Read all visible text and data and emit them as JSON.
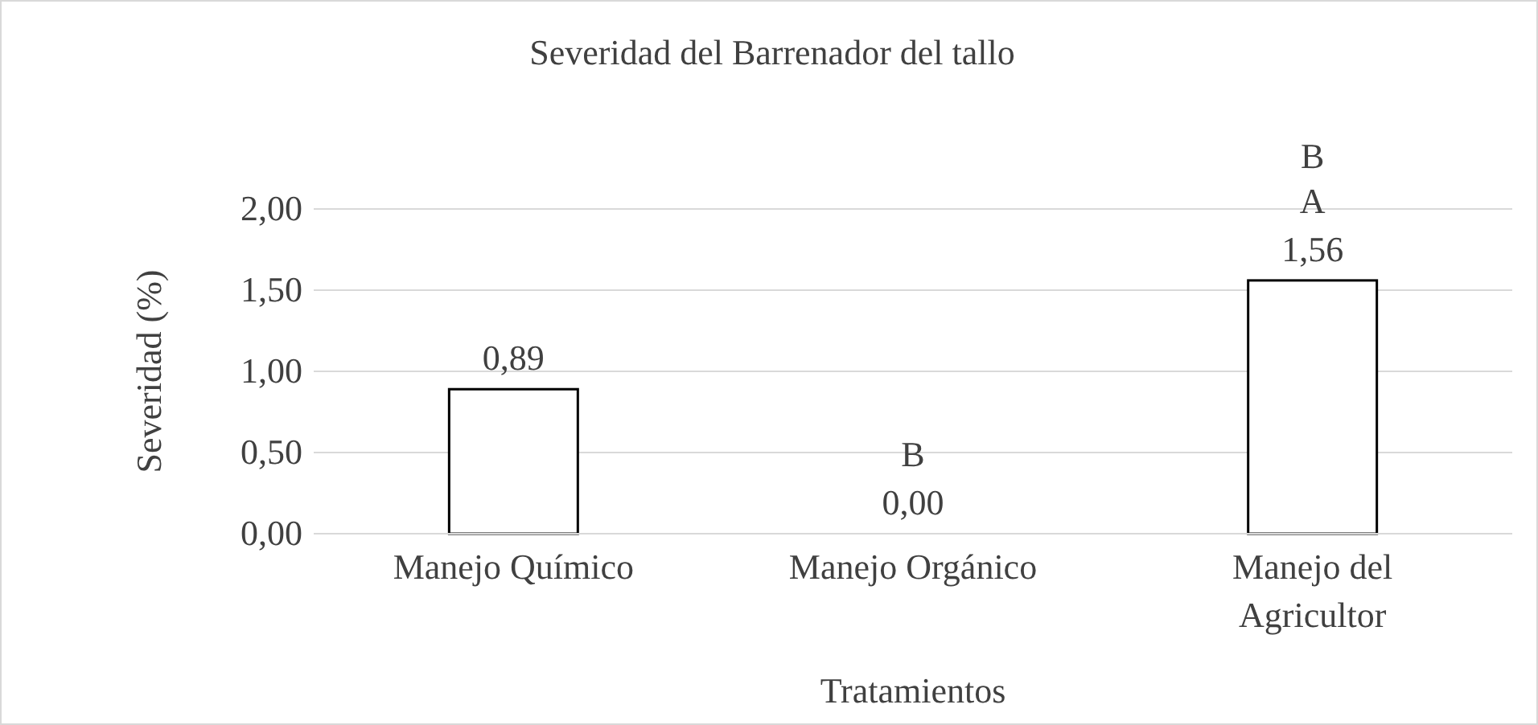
{
  "chart_data": {
    "type": "bar",
    "title": "Severidad del Barrenador del tallo",
    "xlabel": "Tratamientos",
    "ylabel": "Severidad (%)",
    "categories": [
      "Manejo Químico",
      "Manejo Orgánico",
      "Manejo del Agricultor"
    ],
    "values": [
      0.89,
      0,
      1.56
    ],
    "color": "#ffffff",
    "value_labels": [
      "0,89",
      "0,00",
      "1,56"
    ],
    "ylim": [
      0,
      2
    ],
    "yticks": [
      {
        "value": 0,
        "label": "0,00"
      },
      {
        "value": 0.5,
        "label": "0,50"
      },
      {
        "value": 1,
        "label": "1,00"
      },
      {
        "value": 1.5,
        "label": "1,50"
      },
      {
        "value": 2,
        "label": "2,00"
      }
    ],
    "grid": "y",
    "annotations": [
      "B",
      "A",
      "B"
    ]
  }
}
